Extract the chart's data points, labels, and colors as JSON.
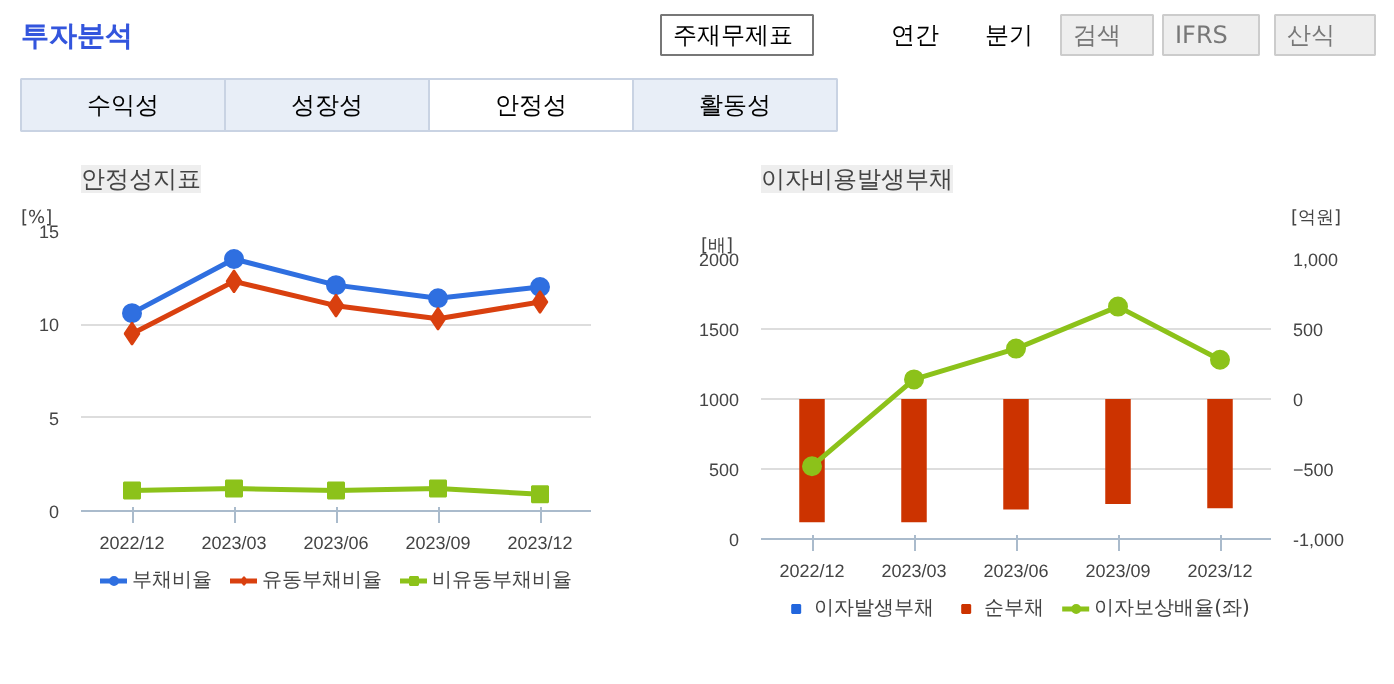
{
  "chart_data": [
    {
      "type": "other",
      "title": "투자분석",
      "annotations": [
        "주재무제표",
        "연간",
        "분기",
        "검색",
        "IFRS",
        "산식",
        "수익성",
        "성장성",
        "안정성",
        "활동성"
      ]
    },
    {
      "type": "line",
      "title": "안정성지표",
      "ylabel": "[%]",
      "categories": [
        "2022/12",
        "2023/03",
        "2023/06",
        "2023/09",
        "2023/12"
      ],
      "ylim": [
        0,
        15
      ],
      "yticks": [
        0,
        5,
        10,
        15
      ],
      "grid": "y",
      "legend": "bottom",
      "series": [
        {
          "name": "부채비율",
          "color": "#2f6fe0",
          "marker": "circle",
          "values": [
            10.6,
            13.5,
            12.1,
            11.4,
            12.0
          ]
        },
        {
          "name": "유동부채비율",
          "color": "#d9400f",
          "marker": "diamond",
          "values": [
            9.5,
            12.3,
            11.0,
            10.3,
            11.2
          ]
        },
        {
          "name": "비유동부채비율",
          "color": "#8cc21a",
          "marker": "square",
          "values": [
            1.1,
            1.2,
            1.1,
            1.2,
            0.9
          ]
        }
      ]
    },
    {
      "type": "bar",
      "title": "이자비용발생부채",
      "ylabel": "[배]",
      "y2label": "[억원]",
      "categories": [
        "2022/12",
        "2023/03",
        "2023/06",
        "2023/09",
        "2023/12"
      ],
      "ylim": [
        0,
        2000
      ],
      "yticks": [
        0,
        500,
        1000,
        1500,
        2000
      ],
      "y2lim": [
        -1000,
        1000
      ],
      "y2ticks": [
        {
          "value": -1000,
          "label": "-1,000"
        },
        -500,
        0,
        500,
        {
          "value": 1000,
          "label": "1,000"
        }
      ],
      "grid": "y",
      "legend": "bottom",
      "series": [
        {
          "name": "이자발생부채",
          "color": "#2266dd",
          "axis": "y2",
          "values": [
            null,
            null,
            null,
            null,
            null
          ]
        },
        {
          "name": "순부채",
          "color": "#cc3300",
          "axis": "y2",
          "values": [
            -880,
            -880,
            -790,
            -750,
            -780
          ]
        },
        {
          "name": "이자보상배율(좌)",
          "type": "line",
          "color": "#8cc21a",
          "marker": "circle",
          "values": [
            520,
            1140,
            1360,
            1660,
            1280
          ]
        }
      ]
    }
  ]
}
